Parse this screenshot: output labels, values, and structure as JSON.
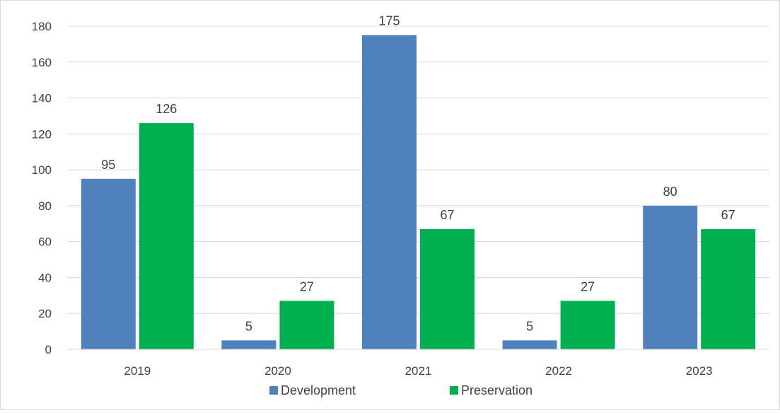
{
  "chart_data": {
    "type": "bar",
    "categories": [
      "2019",
      "2020",
      "2021",
      "2022",
      "2023"
    ],
    "series": [
      {
        "name": "Development",
        "values": [
          95,
          5,
          175,
          5,
          80
        ],
        "color": "#4f81bd"
      },
      {
        "name": "Preservation",
        "values": [
          126,
          27,
          67,
          27,
          67
        ],
        "color": "#00b050"
      }
    ],
    "ylim": [
      0,
      180
    ],
    "yticks": [
      0,
      20,
      40,
      60,
      80,
      100,
      120,
      140,
      160,
      180
    ],
    "grid": true,
    "legend_position": "bottom",
    "data_labels": true,
    "title": "",
    "xlabel": "",
    "ylabel": ""
  }
}
